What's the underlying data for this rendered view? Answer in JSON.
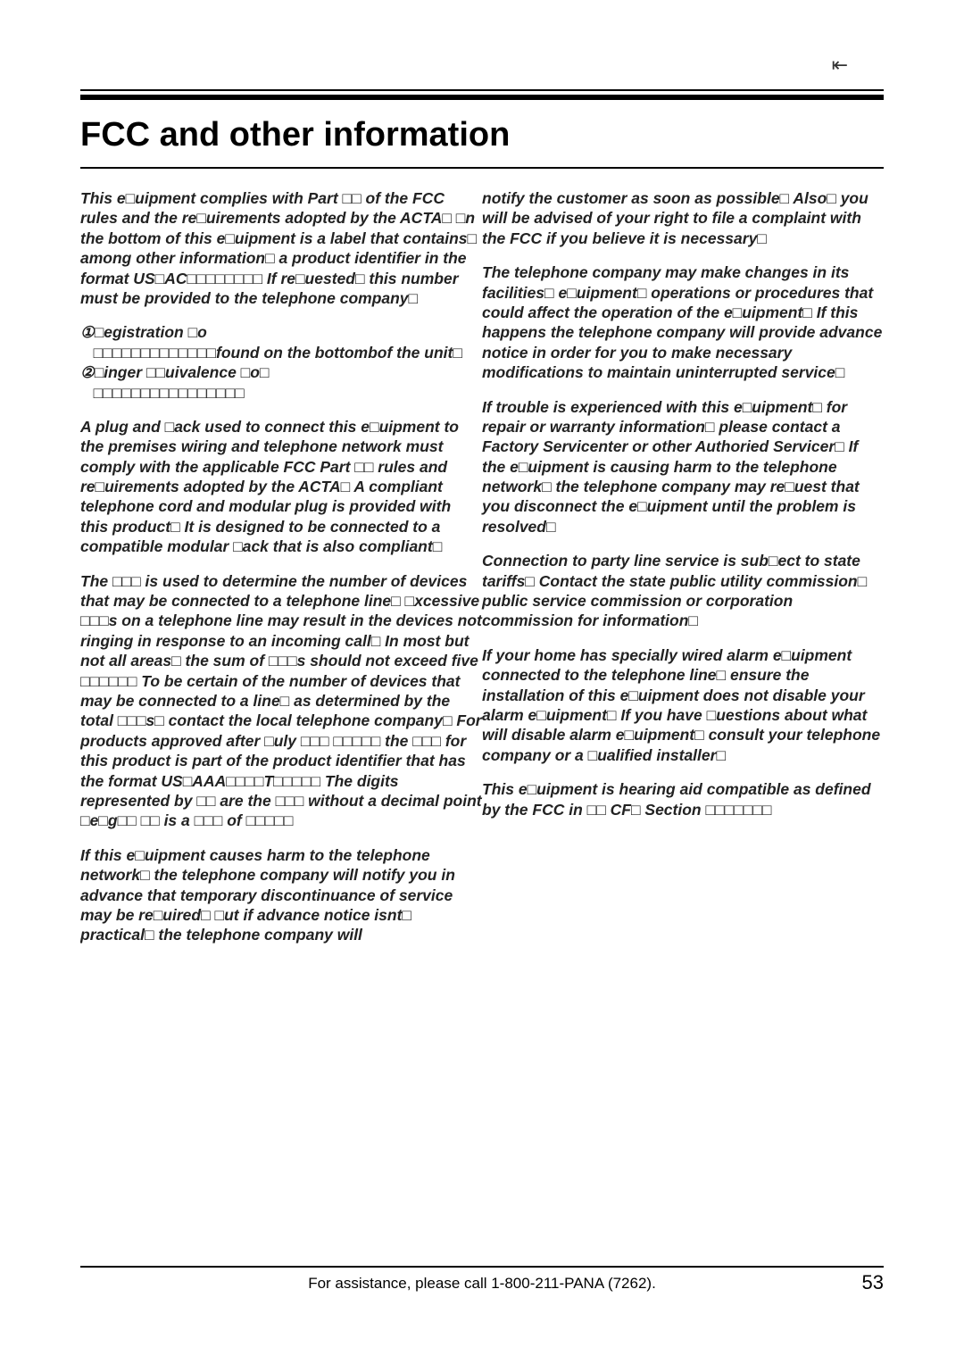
{
  "icon": "⇤",
  "doc_title": "FCC and other information",
  "left": {
    "p1": "This e□uipment complies with Part □□ of the FCC rules and the re□uirements adopted by the ACTA□ □n the bottom of this e□uipment is a label that contains□ among other information□ a product identifier in the format US□AC□□□□□□□□ If re□uested□ this number must be provided to the telephone company□",
    "p1b_pref": "①□egistration □o",
    "p1b_mid": "□□□□□□□□□□□□□found on the bottombof the unit□",
    "p1c_pref": "②□inger □□uivalence □o□",
    "p1c_mid": "□□□□□□□□□□□□□□□□",
    "p2": "A plug and □ack used to connect this e□uipment to the premises wiring and telephone network must comply with the applicable FCC Part □□ rules and re□uirements adopted by the ACTA□ A compliant telephone cord and modular plug is provided with this product□ It is designed to be connected to a compatible modular □ack that is also compliant□",
    "p3": "The □□□ is used to determine the number of devices that may be connected to a telephone line□ □xcessive □□□s on a telephone line may result in the devices not ringing in response to an incoming call□ In most but not all areas□ the sum of □□□s should not exceed five □□□□□□ To be certain of the number of devices that may be connected to a line□ as determined by the total □□□s□ contact the local telephone company□ For products approved after □uly □□□ □□□□□ the □□□ for this product is part of the product identifier that has the format US□AAA□□□□T□□□□□ The digits represented by □□ are the □□□ without a decimal point □e□g□□ □□ is a □□□ of □□□□□",
    "p4": "If this e□uipment causes harm to the telephone network□ the telephone company will notify you in advance that temporary discontinuance of service may be re□uired□ □ut if advance notice isnt□ practical□ the telephone company will"
  },
  "right": {
    "p1": "notify the customer as soon as possible□ Also□ you will be advised of your right to file a complaint with the FCC if you believe it is necessary□",
    "p2": "The telephone company may make changes in its facilities□ e□uipment□ operations or procedures that could affect the operation of the e□uipment□ If this happens the telephone company will provide advance notice in order for you to make necessary modifications to maintain uninterrupted service□",
    "p3": "If trouble is experienced with this e□uipment□ for repair or warranty information□ please contact a Factory Servicenter or other Authoried Servicer□ If the e□uipment is causing harm to the telephone network□ the telephone company may re□uest that you disconnect the e□uipment until the problem is resolved□",
    "p4": "Connection to party line service is sub□ect to state tariffs□ Contact the state public utility commission□ public service commission or corporation commission for information□",
    "p5": "If your home has specially wired alarm e□uipment connected to the telephone line□ ensure the installation of this e□uipment does not disable your alarm e□uipment□ If you have □uestions about what will disable alarm e□uipment□ consult your telephone company or a □ualified installer□",
    "p6": "This e□uipment is hearing aid compatible as defined by the FCC in □□ CF□ Section □□□□□□□"
  },
  "footer": "For assistance, please call 1-800-211-PANA (7262).",
  "page": "53"
}
